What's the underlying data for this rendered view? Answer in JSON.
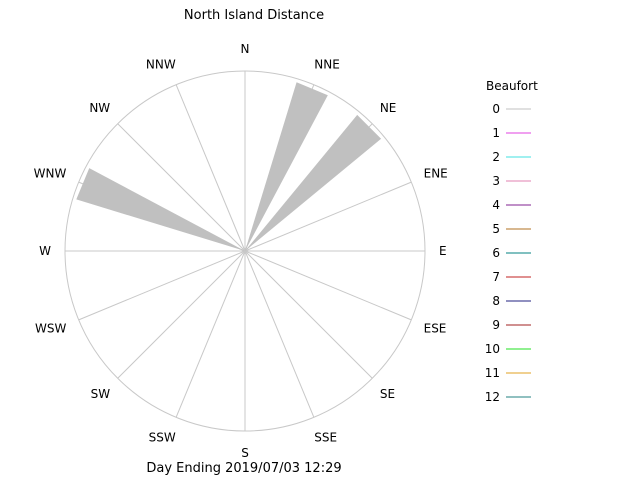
{
  "chart_data": {
    "type": "wind-rose",
    "title": "North Island Distance",
    "footer": "Day Ending 2019/07/03 12:29",
    "directions": [
      "N",
      "NNE",
      "NE",
      "ENE",
      "E",
      "ESE",
      "SE",
      "SSE",
      "S",
      "SSW",
      "SW",
      "WSW",
      "W",
      "WNW",
      "NW",
      "NNW"
    ],
    "legend_title": "Beaufort",
    "legend": [
      {
        "label": "0",
        "color": "#c0c0c0"
      },
      {
        "label": "1",
        "color": "#e040e0"
      },
      {
        "label": "2",
        "color": "#40e0e0"
      },
      {
        "label": "3",
        "color": "#e080b0"
      },
      {
        "label": "4",
        "color": "#802090"
      },
      {
        "label": "5",
        "color": "#b07020"
      },
      {
        "label": "6",
        "color": "#008080"
      },
      {
        "label": "7",
        "color": "#c02020"
      },
      {
        "label": "8",
        "color": "#202080"
      },
      {
        "label": "9",
        "color": "#a02020"
      },
      {
        "label": "10",
        "color": "#20e020"
      },
      {
        "label": "11",
        "color": "#e0a020"
      },
      {
        "label": "12",
        "color": "#208080"
      }
    ],
    "petals": [
      {
        "direction": "NNE",
        "beaufort": "0",
        "value": 0.98
      },
      {
        "direction": "NE",
        "beaufort": "0",
        "value": 0.98
      },
      {
        "direction": "WNW",
        "beaufort": "0",
        "value": 0.98
      }
    ],
    "r_max": 1.0
  }
}
